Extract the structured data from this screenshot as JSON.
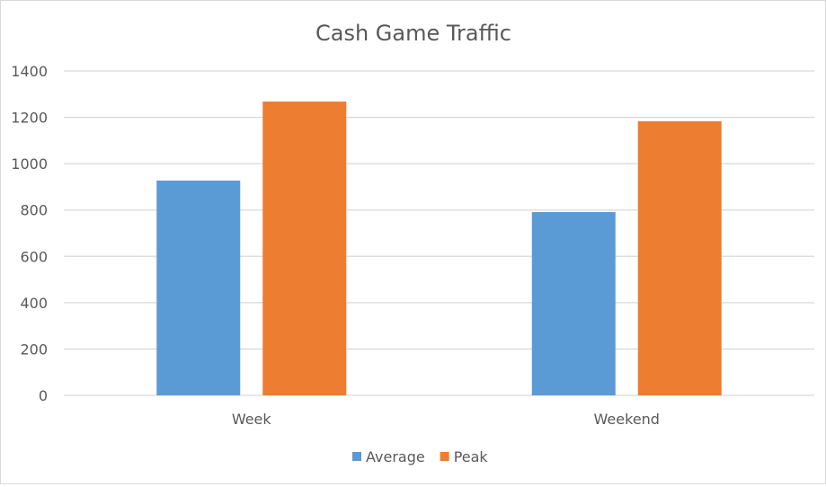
{
  "chart_data": {
    "type": "bar",
    "title": "Cash Game Traffic",
    "categories": [
      "Week",
      "Weekend"
    ],
    "series": [
      {
        "name": "Average",
        "values": [
          927,
          791
        ],
        "color": "#5b9bd5"
      },
      {
        "name": "Peak",
        "values": [
          1268,
          1183
        ],
        "color": "#ed7d31"
      }
    ],
    "xlabel": "",
    "ylabel": "",
    "ylim": [
      0,
      1400
    ],
    "yticks": [
      0,
      200,
      400,
      600,
      800,
      1000,
      1200,
      1400
    ],
    "grid": true,
    "legend": "bottom"
  }
}
